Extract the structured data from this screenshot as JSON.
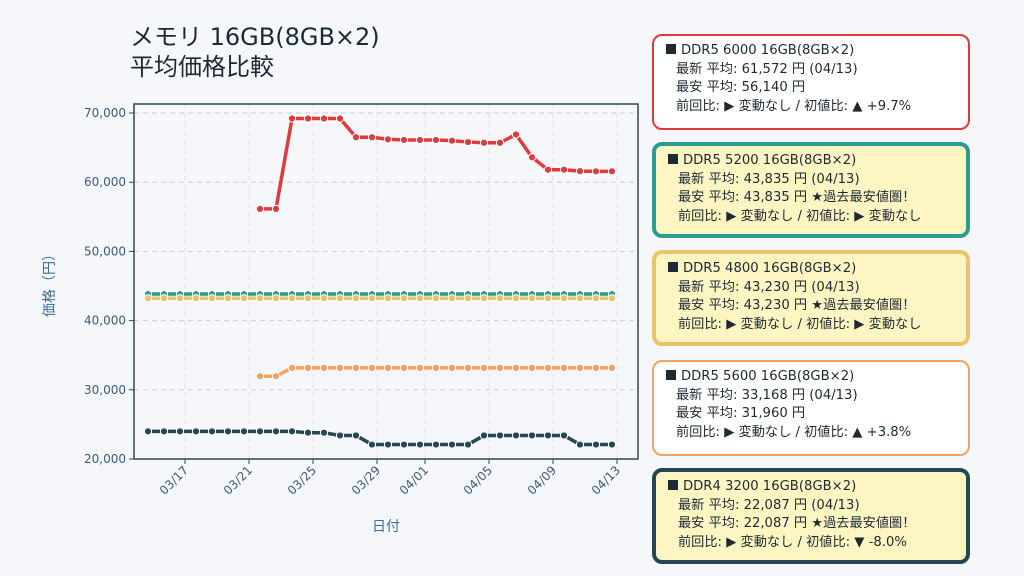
{
  "title": [
    "メモリ 16GB(8GB×2)",
    "平均価格比較"
  ],
  "chart_data": {
    "type": "line",
    "xlabel": "日付",
    "ylabel": "価格（円）",
    "ylim": [
      20000,
      70000
    ],
    "yticks": [
      "20,000",
      "30,000",
      "40,000",
      "50,000",
      "60,000",
      "70,000"
    ],
    "xticks": [
      "03/17",
      "03/21",
      "03/25",
      "03/29",
      "04/01",
      "04/05",
      "04/09",
      "04/13"
    ],
    "x": [
      "03/15",
      "03/16",
      "03/17",
      "03/18",
      "03/19",
      "03/20",
      "03/21",
      "03/22",
      "03/23",
      "03/24",
      "03/25",
      "03/26",
      "03/27",
      "03/28",
      "03/29",
      "03/30",
      "03/31",
      "04/01",
      "04/02",
      "04/03",
      "04/04",
      "04/05",
      "04/06",
      "04/07",
      "04/08",
      "04/09",
      "04/10",
      "04/11",
      "04/12",
      "04/13"
    ],
    "grid": true,
    "series": [
      {
        "name": "DDR5 6000 16GB(8GB×2)",
        "color": "#e0393e",
        "values": [
          null,
          null,
          null,
          null,
          null,
          null,
          null,
          56140,
          56140,
          69200,
          69200,
          69200,
          69200,
          66500,
          66500,
          66200,
          66100,
          66100,
          66100,
          66000,
          65800,
          65700,
          65700,
          66900,
          63600,
          61800,
          61800,
          61600,
          61572,
          61572
        ]
      },
      {
        "name": "DDR5 5200 16GB(8GB×2)",
        "color": "#2a9d8f",
        "values": [
          43835,
          43835,
          43835,
          43835,
          43835,
          43835,
          43835,
          43835,
          43835,
          43835,
          43835,
          43835,
          43835,
          43835,
          43835,
          43835,
          43835,
          43835,
          43835,
          43835,
          43835,
          43835,
          43835,
          43835,
          43835,
          43835,
          43835,
          43835,
          43835,
          43835
        ]
      },
      {
        "name": "DDR5 4800 16GB(8GB×2)",
        "color": "#e9c46a",
        "values": [
          43230,
          43230,
          43230,
          43230,
          43230,
          43230,
          43230,
          43230,
          43230,
          43230,
          43230,
          43230,
          43230,
          43230,
          43230,
          43230,
          43230,
          43230,
          43230,
          43230,
          43230,
          43230,
          43230,
          43230,
          43230,
          43230,
          43230,
          43230,
          43230,
          43230
        ]
      },
      {
        "name": "DDR5 5600 16GB(8GB×2)",
        "color": "#f4a261",
        "values": [
          null,
          null,
          null,
          null,
          null,
          null,
          null,
          31960,
          31960,
          33168,
          33168,
          33168,
          33168,
          33168,
          33168,
          33168,
          33168,
          33168,
          33168,
          33168,
          33168,
          33168,
          33168,
          33168,
          33168,
          33168,
          33168,
          33168,
          33168,
          33168
        ]
      },
      {
        "name": "DDR4 3200 16GB(8GB×2)",
        "color": "#264653",
        "values": [
          24000,
          24000,
          24000,
          24000,
          24000,
          24000,
          24000,
          24000,
          24000,
          24000,
          23800,
          23800,
          23400,
          23400,
          22087,
          22087,
          22087,
          22087,
          22087,
          22087,
          22087,
          23400,
          23400,
          23400,
          23400,
          23400,
          23400,
          22087,
          22087,
          22087
        ]
      }
    ]
  },
  "cards": [
    {
      "name": "DDR5 6000 16GB(8GB×2)",
      "latest": "最新 平均: 61,572 円 (04/13)",
      "lowest": "最安 平均: 56,140 円",
      "change": "前回比: ▶ 変動なし / 初値比: ▲ +9.7%",
      "border": "#e0393e",
      "bg": "#ffffff",
      "bw": "2px"
    },
    {
      "name": "DDR5 5200 16GB(8GB×2)",
      "latest": "最新 平均: 43,835 円 (04/13)",
      "lowest": "最安 平均: 43,835 円 ★過去最安値圏！",
      "change": "前回比: ▶ 変動なし / 初値比: ▶ 変動なし",
      "border": "#2a9d8f",
      "bg": "#fdf6c3",
      "bw": "4px"
    },
    {
      "name": "DDR5 4800 16GB(8GB×2)",
      "latest": "最新 平均: 43,230 円 (04/13)",
      "lowest": "最安 平均: 43,230 円 ★過去最安値圏！",
      "change": "前回比: ▶ 変動なし / 初値比: ▶ 変動なし",
      "border": "#e9c46a",
      "bg": "#fdf6c3",
      "bw": "4px"
    },
    {
      "name": "DDR5 5600 16GB(8GB×2)",
      "latest": "最新 平均: 33,168 円 (04/13)",
      "lowest": "最安 平均: 31,960 円",
      "change": "前回比: ▶ 変動なし / 初値比: ▲ +3.8%",
      "border": "#f4a261",
      "bg": "#ffffff",
      "bw": "2px"
    },
    {
      "name": "DDR4 3200 16GB(8GB×2)",
      "latest": "最新 平均: 22,087 円 (04/13)",
      "lowest": "最安 平均: 22,087 円 ★過去最安値圏！",
      "change": "前回比: ▶ 変動なし / 初値比: ▼ -8.0%",
      "border": "#264653",
      "bg": "#fdf6c3",
      "bw": "4px"
    }
  ]
}
